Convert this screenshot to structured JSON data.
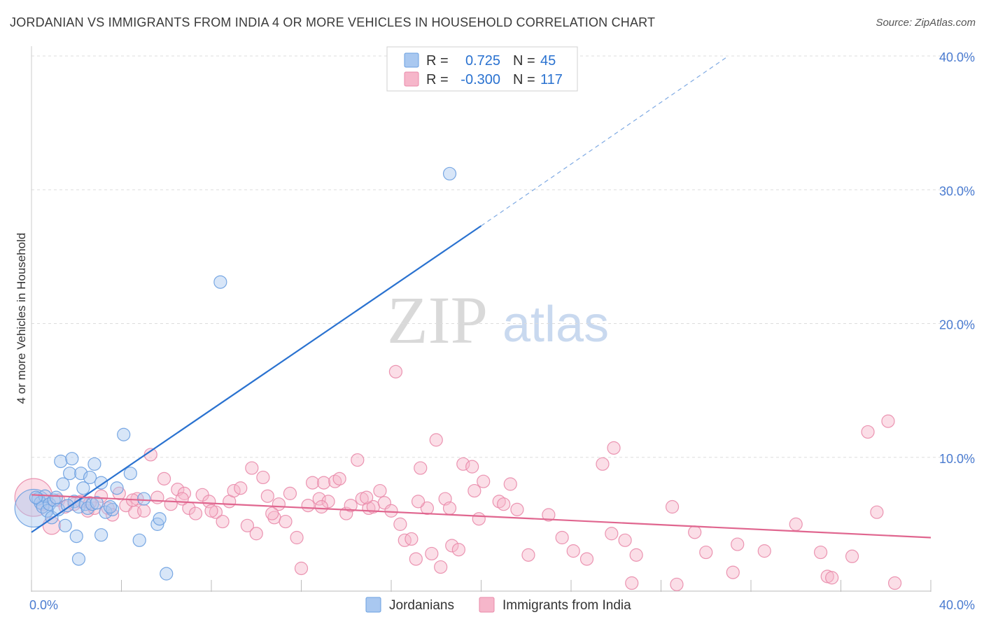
{
  "title": "JORDANIAN VS IMMIGRANTS FROM INDIA 4 OR MORE VEHICLES IN HOUSEHOLD CORRELATION CHART",
  "source": "Source: ZipAtlas.com",
  "watermark": {
    "zip": "ZIP",
    "atlas": "atlas"
  },
  "colors": {
    "blue_fill": "#a9c8f0",
    "blue_stroke": "#6a9fe0",
    "blue_line": "#2a72d0",
    "pink_fill": "#f6b6ca",
    "pink_stroke": "#e98aaa",
    "pink_line": "#e0668f",
    "axis_text": "#4a7bd0",
    "grid": "#dddddd"
  },
  "legend": {
    "rows": [
      {
        "r_label": "R =",
        "r_value": "0.725",
        "n_label": "N =",
        "n_value": "45",
        "series": "jordanians"
      },
      {
        "r_label": "R =",
        "r_value": "-0.300",
        "n_label": "N =",
        "n_value": "117",
        "series": "india"
      }
    ]
  },
  "bottom_legend": [
    "Jordanians",
    "Immigrants from India"
  ],
  "chart_data": {
    "type": "scatter",
    "title": "JORDANIAN VS IMMIGRANTS FROM INDIA 4 OR MORE VEHICLES IN HOUSEHOLD CORRELATION CHART",
    "xlabel": "",
    "ylabel": "4 or more Vehicles in Household",
    "xlim": [
      0,
      40
    ],
    "ylim": [
      0,
      40
    ],
    "x_tick_labels": [
      "0.0%",
      "40.0%"
    ],
    "y_ticks": [
      10,
      20,
      30,
      40
    ],
    "y_tick_labels": [
      "10.0%",
      "20.0%",
      "30.0%",
      "40.0%"
    ],
    "grid": "horizontal dashed",
    "legend_position": "top-center",
    "series": [
      {
        "name": "Jordanians",
        "R": 0.725,
        "N": 45,
        "trend": {
          "x0": 0,
          "y0": 4.4,
          "x1": 20,
          "y1": 27.3,
          "dashed_to_x": 31,
          "dashed_to_y": 40
        },
        "points": [
          [
            0.1,
            6.2,
            3
          ],
          [
            0.3,
            6.9,
            1
          ],
          [
            0.4,
            6.6,
            1
          ],
          [
            0.5,
            6.3,
            1
          ],
          [
            0.6,
            7.1,
            1
          ],
          [
            0.7,
            6.0,
            1
          ],
          [
            0.8,
            6.5,
            1
          ],
          [
            0.9,
            5.5,
            1
          ],
          [
            1.0,
            6.8,
            1
          ],
          [
            1.1,
            7.0,
            1
          ],
          [
            1.3,
            9.7,
            1
          ],
          [
            1.4,
            8.0,
            1
          ],
          [
            1.5,
            4.9,
            1
          ],
          [
            1.7,
            8.8,
            1
          ],
          [
            1.8,
            9.9,
            1
          ],
          [
            1.9,
            6.7,
            1
          ],
          [
            2.0,
            4.1,
            1
          ],
          [
            2.1,
            6.3,
            1
          ],
          [
            2.2,
            8.8,
            1
          ],
          [
            2.1,
            2.4,
            1
          ],
          [
            2.3,
            7.7,
            1
          ],
          [
            2.4,
            6.5,
            1
          ],
          [
            2.5,
            6.2,
            1
          ],
          [
            2.6,
            8.5,
            1
          ],
          [
            2.7,
            6.5,
            1
          ],
          [
            2.8,
            9.5,
            1
          ],
          [
            3.1,
            4.2,
            1
          ],
          [
            3.1,
            8.1,
            1
          ],
          [
            3.3,
            5.9,
            1
          ],
          [
            3.6,
            6.1,
            1
          ],
          [
            3.8,
            7.7,
            1
          ],
          [
            4.1,
            11.7,
            1
          ],
          [
            4.4,
            8.8,
            1
          ],
          [
            4.8,
            3.8,
            1
          ],
          [
            5.0,
            6.9,
            1
          ],
          [
            5.6,
            5.0,
            1
          ],
          [
            5.7,
            5.4,
            1
          ],
          [
            6.0,
            1.3,
            1
          ],
          [
            8.4,
            23.1,
            1
          ],
          [
            18.6,
            31.2,
            1
          ],
          [
            3.5,
            6.3,
            1
          ],
          [
            1.2,
            6.1,
            1
          ],
          [
            0.2,
            7.0,
            1
          ],
          [
            2.9,
            6.6,
            1
          ],
          [
            1.6,
            6.4,
            1
          ]
        ]
      },
      {
        "name": "Immigrants from India",
        "R": -0.3,
        "N": 117,
        "trend": {
          "x0": 0,
          "y0": 7.2,
          "x1": 40,
          "y1": 4.0
        },
        "points": [
          [
            0.1,
            7.0,
            3
          ],
          [
            0.5,
            6.5,
            1
          ],
          [
            0.9,
            4.9,
            1.4
          ],
          [
            1.2,
            6.8,
            1
          ],
          [
            1.5,
            6.3,
            1
          ],
          [
            1.9,
            6.5,
            1
          ],
          [
            2.2,
            6.7,
            1
          ],
          [
            2.5,
            6.0,
            1
          ],
          [
            2.8,
            6.2,
            1
          ],
          [
            3.1,
            7.1,
            1
          ],
          [
            3.4,
            6.2,
            1
          ],
          [
            3.6,
            5.7,
            1
          ],
          [
            3.9,
            7.3,
            1
          ],
          [
            4.2,
            6.4,
            1
          ],
          [
            4.6,
            5.9,
            1
          ],
          [
            4.7,
            6.9,
            1
          ],
          [
            5.0,
            6.0,
            1
          ],
          [
            5.3,
            10.2,
            1
          ],
          [
            5.6,
            7.0,
            1
          ],
          [
            5.9,
            8.4,
            1
          ],
          [
            6.2,
            6.5,
            1
          ],
          [
            6.5,
            7.6,
            1
          ],
          [
            6.8,
            7.3,
            1
          ],
          [
            7.0,
            6.2,
            1
          ],
          [
            7.3,
            5.8,
            1
          ],
          [
            7.6,
            7.2,
            1
          ],
          [
            7.9,
            6.7,
            1
          ],
          [
            8.2,
            5.9,
            1
          ],
          [
            8.5,
            5.2,
            1
          ],
          [
            8.8,
            6.7,
            1
          ],
          [
            9.0,
            7.5,
            1
          ],
          [
            9.3,
            7.7,
            1
          ],
          [
            9.6,
            4.9,
            1
          ],
          [
            9.8,
            9.2,
            1
          ],
          [
            10.0,
            4.3,
            1
          ],
          [
            10.3,
            8.5,
            1
          ],
          [
            10.5,
            7.1,
            1
          ],
          [
            10.8,
            5.5,
            1
          ],
          [
            11.0,
            6.5,
            1
          ],
          [
            11.3,
            5.2,
            1
          ],
          [
            11.5,
            7.3,
            1
          ],
          [
            11.8,
            4.0,
            1
          ],
          [
            12.0,
            1.7,
            1
          ],
          [
            12.3,
            6.4,
            1
          ],
          [
            12.5,
            8.1,
            1
          ],
          [
            12.8,
            6.9,
            1
          ],
          [
            13.0,
            8.1,
            1
          ],
          [
            13.2,
            6.7,
            1
          ],
          [
            13.5,
            8.2,
            1
          ],
          [
            13.7,
            8.4,
            1
          ],
          [
            14.0,
            5.8,
            1
          ],
          [
            14.2,
            6.4,
            1
          ],
          [
            14.5,
            9.8,
            1
          ],
          [
            14.7,
            6.9,
            1
          ],
          [
            15.0,
            6.2,
            1
          ],
          [
            15.2,
            6.3,
            1
          ],
          [
            15.5,
            7.5,
            1
          ],
          [
            15.7,
            6.6,
            1
          ],
          [
            16.0,
            6.0,
            1
          ],
          [
            16.2,
            16.4,
            1
          ],
          [
            16.4,
            5.0,
            1
          ],
          [
            16.6,
            3.8,
            1
          ],
          [
            16.9,
            3.9,
            1
          ],
          [
            17.1,
            2.4,
            1
          ],
          [
            17.3,
            9.2,
            1
          ],
          [
            17.6,
            6.2,
            1
          ],
          [
            17.8,
            2.8,
            1
          ],
          [
            18.0,
            11.3,
            1
          ],
          [
            18.2,
            1.8,
            1
          ],
          [
            18.4,
            6.9,
            1
          ],
          [
            18.6,
            6.2,
            1
          ],
          [
            18.7,
            3.4,
            1
          ],
          [
            19.0,
            3.1,
            1
          ],
          [
            19.2,
            9.5,
            1
          ],
          [
            19.6,
            9.3,
            1
          ],
          [
            19.7,
            7.5,
            1
          ],
          [
            19.9,
            5.4,
            1
          ],
          [
            20.1,
            8.2,
            1
          ],
          [
            20.8,
            6.7,
            1
          ],
          [
            21.3,
            8.0,
            1
          ],
          [
            21.6,
            6.1,
            1
          ],
          [
            22.1,
            2.7,
            1
          ],
          [
            23.0,
            5.7,
            1
          ],
          [
            23.6,
            4.0,
            1
          ],
          [
            24.1,
            3.0,
            1
          ],
          [
            24.7,
            2.4,
            1
          ],
          [
            25.4,
            9.5,
            1
          ],
          [
            25.8,
            4.3,
            1
          ],
          [
            25.9,
            10.7,
            1
          ],
          [
            26.4,
            3.8,
            1
          ],
          [
            26.7,
            0.6,
            1
          ],
          [
            26.9,
            2.7,
            1
          ],
          [
            28.5,
            6.3,
            1
          ],
          [
            28.7,
            0.5,
            1
          ],
          [
            29.5,
            4.4,
            1
          ],
          [
            30.0,
            2.9,
            1
          ],
          [
            31.2,
            1.4,
            1
          ],
          [
            31.4,
            3.5,
            1
          ],
          [
            32.6,
            3.0,
            1
          ],
          [
            34.0,
            5.0,
            1
          ],
          [
            35.1,
            2.9,
            1
          ],
          [
            35.4,
            1.1,
            1
          ],
          [
            35.6,
            1.0,
            1
          ],
          [
            36.5,
            2.6,
            1
          ],
          [
            37.2,
            11.9,
            1
          ],
          [
            37.6,
            5.9,
            1
          ],
          [
            38.1,
            12.7,
            1
          ],
          [
            38.4,
            0.6,
            1
          ],
          [
            2.6,
            6.6,
            1
          ],
          [
            6.7,
            6.9,
            1
          ],
          [
            10.7,
            5.8,
            1
          ],
          [
            14.9,
            7.0,
            1
          ],
          [
            17.2,
            6.7,
            1
          ],
          [
            4.5,
            6.8,
            1
          ],
          [
            8.0,
            6.0,
            1
          ],
          [
            12.9,
            6.3,
            1
          ],
          [
            21.0,
            6.5,
            1
          ]
        ]
      }
    ]
  }
}
